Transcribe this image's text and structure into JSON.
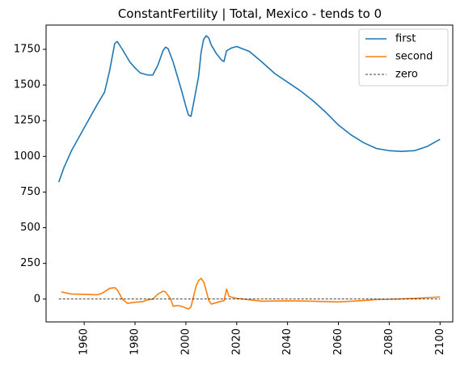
{
  "chart_data": {
    "type": "line",
    "title": "ConstantFertility | Total, Mexico  - tends to 0",
    "xlabel": "",
    "ylabel": "",
    "xlim": [
      1945,
      2105
    ],
    "ylim": [
      -160,
      1920
    ],
    "x_ticks": [
      1960,
      1980,
      2000,
      2020,
      2040,
      2060,
      2080,
      2100
    ],
    "y_ticks": [
      0,
      250,
      500,
      750,
      1000,
      1250,
      1500,
      1750
    ],
    "legend_position": "top-right",
    "grid": false,
    "series": [
      {
        "name": "first",
        "color": "#1f77b4",
        "style": "solid",
        "points": [
          [
            1950,
            820
          ],
          [
            1952,
            920
          ],
          [
            1955,
            1040
          ],
          [
            1960,
            1200
          ],
          [
            1965,
            1360
          ],
          [
            1968,
            1450
          ],
          [
            1970,
            1600
          ],
          [
            1972,
            1790
          ],
          [
            1973,
            1805
          ],
          [
            1975,
            1750
          ],
          [
            1978,
            1660
          ],
          [
            1980,
            1620
          ],
          [
            1982,
            1585
          ],
          [
            1985,
            1570
          ],
          [
            1987,
            1570
          ],
          [
            1989,
            1640
          ],
          [
            1991,
            1740
          ],
          [
            1992,
            1765
          ],
          [
            1993,
            1755
          ],
          [
            1995,
            1660
          ],
          [
            1998,
            1480
          ],
          [
            2000,
            1350
          ],
          [
            2001,
            1290
          ],
          [
            2002,
            1280
          ],
          [
            2003,
            1370
          ],
          [
            2005,
            1560
          ],
          [
            2006,
            1730
          ],
          [
            2007,
            1820
          ],
          [
            2008,
            1845
          ],
          [
            2009,
            1830
          ],
          [
            2010,
            1780
          ],
          [
            2012,
            1720
          ],
          [
            2014,
            1675
          ],
          [
            2015,
            1665
          ],
          [
            2016,
            1740
          ],
          [
            2018,
            1760
          ],
          [
            2020,
            1770
          ],
          [
            2025,
            1735
          ],
          [
            2030,
            1660
          ],
          [
            2035,
            1580
          ],
          [
            2040,
            1520
          ],
          [
            2045,
            1460
          ],
          [
            2050,
            1390
          ],
          [
            2055,
            1310
          ],
          [
            2060,
            1220
          ],
          [
            2065,
            1150
          ],
          [
            2070,
            1095
          ],
          [
            2075,
            1055
          ],
          [
            2080,
            1040
          ],
          [
            2085,
            1035
          ],
          [
            2090,
            1040
          ],
          [
            2095,
            1070
          ],
          [
            2100,
            1120
          ]
        ]
      },
      {
        "name": "second",
        "color": "#ff7f0e",
        "style": "solid",
        "points": [
          [
            1951,
            50
          ],
          [
            1955,
            35
          ],
          [
            1960,
            33
          ],
          [
            1965,
            30
          ],
          [
            1967,
            40
          ],
          [
            1970,
            75
          ],
          [
            1972,
            80
          ],
          [
            1973,
            65
          ],
          [
            1975,
            0
          ],
          [
            1977,
            -30
          ],
          [
            1980,
            -22
          ],
          [
            1983,
            -18
          ],
          [
            1985,
            -5
          ],
          [
            1987,
            0
          ],
          [
            1989,
            35
          ],
          [
            1991,
            55
          ],
          [
            1992,
            50
          ],
          [
            1994,
            0
          ],
          [
            1995,
            -50
          ],
          [
            1997,
            -45
          ],
          [
            1999,
            -55
          ],
          [
            2001,
            -70
          ],
          [
            2002,
            -55
          ],
          [
            2004,
            90
          ],
          [
            2005,
            130
          ],
          [
            2006,
            145
          ],
          [
            2007,
            120
          ],
          [
            2008,
            60
          ],
          [
            2009,
            -10
          ],
          [
            2010,
            -35
          ],
          [
            2012,
            -25
          ],
          [
            2014,
            -15
          ],
          [
            2015,
            -12
          ],
          [
            2016,
            70
          ],
          [
            2017,
            18
          ],
          [
            2020,
            5
          ],
          [
            2025,
            -5
          ],
          [
            2030,
            -15
          ],
          [
            2040,
            -12
          ],
          [
            2050,
            -15
          ],
          [
            2060,
            -20
          ],
          [
            2070,
            -10
          ],
          [
            2075,
            -3
          ],
          [
            2080,
            -2
          ],
          [
            2090,
            5
          ],
          [
            2100,
            15
          ]
        ]
      },
      {
        "name": "zero",
        "color": "#000000",
        "style": "dashed",
        "points": [
          [
            1950,
            0
          ],
          [
            2100,
            0
          ]
        ]
      }
    ]
  }
}
